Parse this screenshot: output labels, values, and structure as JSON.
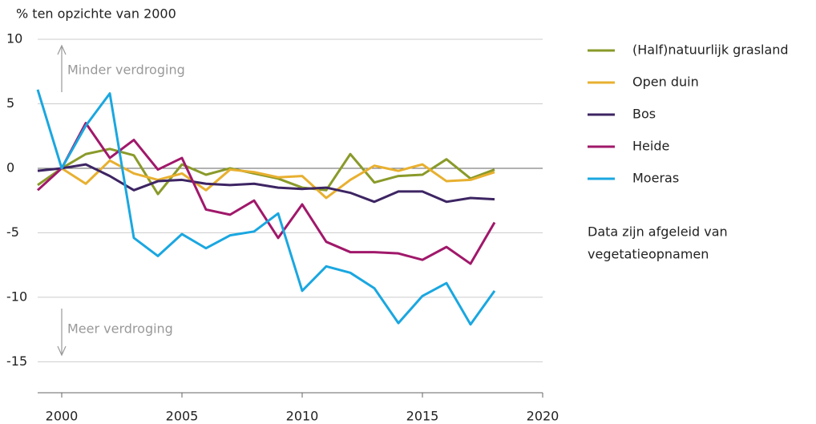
{
  "chart_data": {
    "type": "line",
    "y_label": "% ten opzichte van 2000",
    "x": [
      1999,
      2000,
      2001,
      2002,
      2003,
      2004,
      2005,
      2006,
      2007,
      2008,
      2009,
      2010,
      2011,
      2012,
      2013,
      2014,
      2015,
      2016,
      2017,
      2018
    ],
    "series": [
      {
        "name": "(Half)natuurlijk grasland",
        "color": "#8a9a2a",
        "values": [
          -1.3,
          0,
          1.1,
          1.5,
          1.0,
          -2.0,
          0.3,
          -0.5,
          0,
          -0.4,
          -0.8,
          -1.5,
          -1.7,
          1.1,
          -1.1,
          -0.6,
          -0.5,
          0.7,
          -0.8,
          -0.1
        ]
      },
      {
        "name": "Open duin",
        "color": "#e8b030",
        "values": [
          null,
          0,
          -1.2,
          0.6,
          -0.4,
          -0.9,
          -0.4,
          -1.7,
          -0.1,
          -0.3,
          -0.7,
          -0.6,
          -2.3,
          -0.9,
          0.2,
          -0.2,
          0.3,
          -1.0,
          -0.9,
          -0.3
        ]
      },
      {
        "name": "Bos",
        "color": "#3d2563",
        "values": [
          -0.2,
          0,
          0.3,
          -0.6,
          -1.7,
          -1.0,
          -0.9,
          -1.2,
          -1.3,
          -1.2,
          -1.5,
          -1.6,
          -1.5,
          -1.9,
          -2.6,
          -1.8,
          -1.8,
          -2.6,
          -2.3,
          -2.4
        ]
      },
      {
        "name": "Heide",
        "color": "#a0186a",
        "values": [
          -1.7,
          0,
          3.5,
          0.8,
          2.2,
          -0.1,
          0.8,
          -3.2,
          -3.6,
          -2.5,
          -5.4,
          -2.8,
          -5.7,
          -6.5,
          -6.5,
          -6.6,
          -7.1,
          -6.1,
          -7.4,
          -4.2
        ]
      },
      {
        "name": "Moeras",
        "color": "#1aa7e0",
        "values": [
          6.1,
          0,
          3.3,
          5.8,
          -5.4,
          -6.8,
          -5.1,
          -6.2,
          -5.2,
          -4.9,
          -3.5,
          -9.5,
          -7.6,
          -8.1,
          -9.3,
          -12.0,
          -9.9,
          -8.9,
          -12.1,
          -9.5
        ]
      }
    ],
    "xlim": [
      1999,
      2020
    ],
    "xticks": [
      2000,
      2005,
      2010,
      2015,
      2020
    ],
    "ylim": [
      -17.4,
      10
    ],
    "yticks": [
      10,
      5,
      0,
      -5,
      -10,
      -15
    ],
    "grid": true,
    "annotations": [
      "Minder verdroging",
      "Meer verdroging"
    ],
    "note": [
      "Data zijn afgeleid van",
      "vegetatieopnamen"
    ]
  }
}
